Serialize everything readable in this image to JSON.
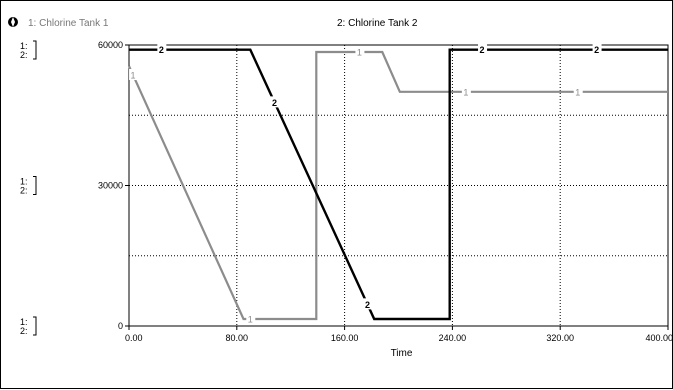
{
  "chart_data": {
    "type": "line",
    "xlabel": "Time",
    "xlim": [
      0,
      400
    ],
    "ylim": [
      0,
      60000
    ],
    "x_ticks": [
      "0.00",
      "80.00",
      "160.00",
      "240.00",
      "320.00",
      "400.00"
    ],
    "y_ticks": [
      "0",
      "30000",
      "60000"
    ],
    "axis_row_labels": [
      "1:\n2:",
      "1:\n2:",
      "1:\n2:"
    ],
    "grid": true,
    "series": [
      {
        "name": "1: Chlorine  Tank 1",
        "marker": "1",
        "color": "#8c8c8c",
        "x": [
          0,
          85,
          85,
          139,
          139,
          188,
          201,
          400
        ],
        "y": [
          55500,
          1500,
          1500,
          1500,
          58500,
          58500,
          50000,
          50000
        ],
        "marker_x": [
          3,
          90,
          171,
          250,
          333
        ]
      },
      {
        "name": "2: Chlorine  Tank 2",
        "marker": "2",
        "color": "#000000",
        "x": [
          0,
          90,
          182,
          238,
          238,
          400
        ],
        "y": [
          59000,
          59000,
          1500,
          1500,
          59000,
          59000
        ],
        "marker_x": [
          24,
          108,
          177,
          262,
          347
        ]
      }
    ]
  },
  "header": {
    "indicator_icon": "pad-indicator-icon"
  }
}
